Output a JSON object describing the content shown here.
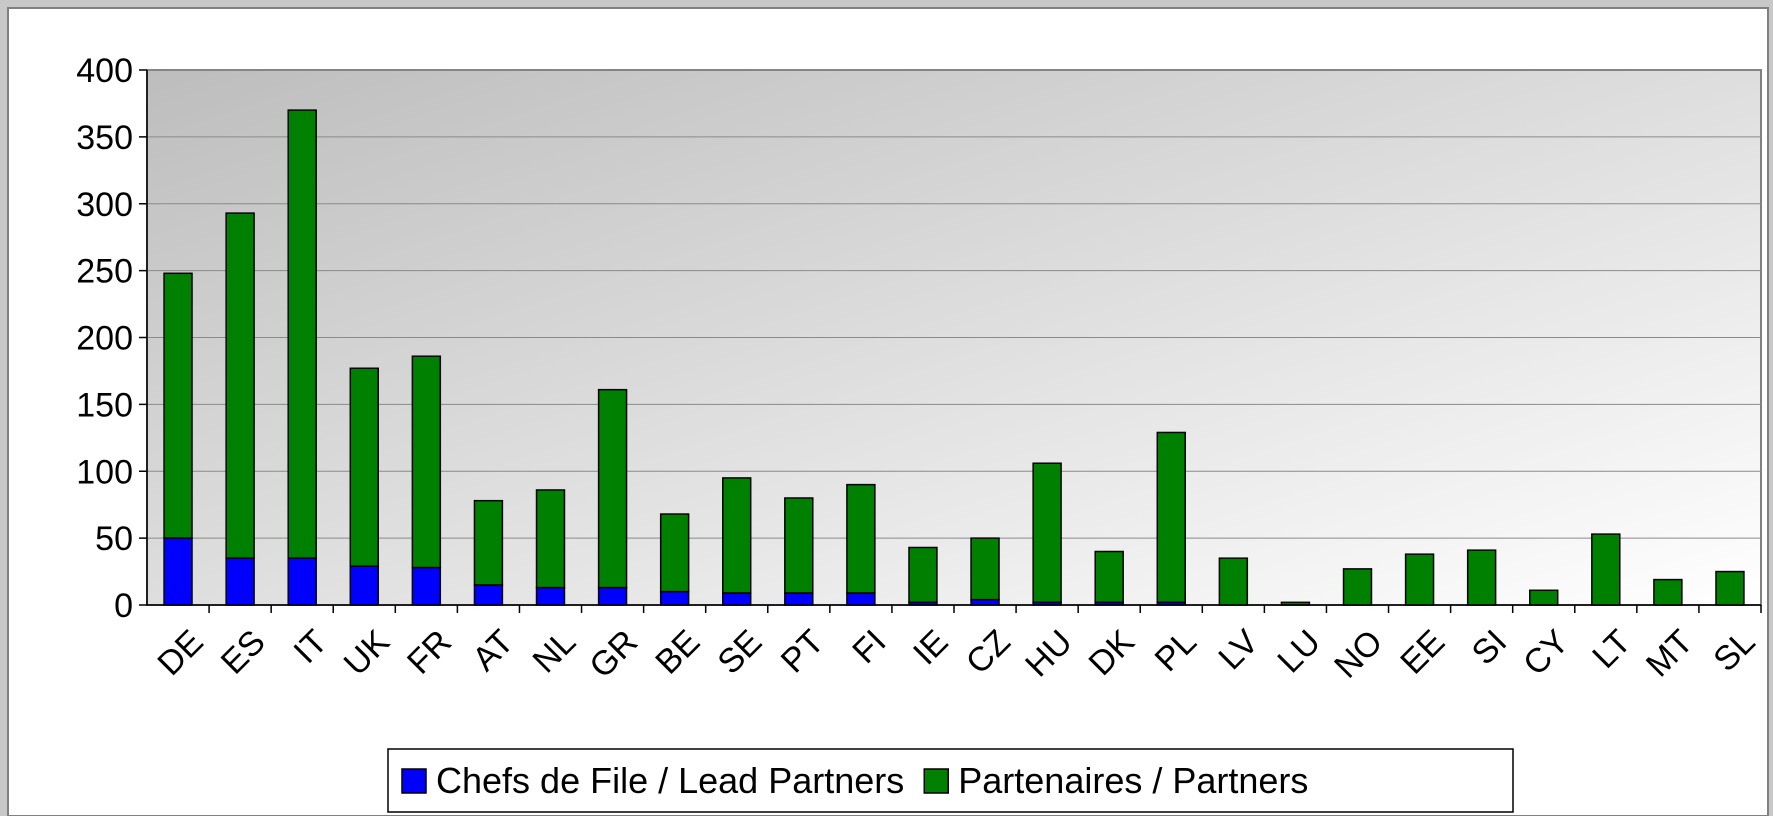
{
  "chart_data": {
    "type": "stacked_bar",
    "categories": [
      "DE",
      "ES",
      "IT",
      "UK",
      "FR",
      "AT",
      "NL",
      "GR",
      "BE",
      "SE",
      "PT",
      "FI",
      "IE",
      "CZ",
      "HU",
      "DK",
      "PL",
      "LV",
      "LU",
      "NO",
      "EE",
      "SI",
      "CY",
      "LT",
      "MT",
      "SL"
    ],
    "series": [
      {
        "name": "Chefs de File / Lead Partners",
        "color": "#0000ff",
        "values": [
          50,
          35,
          35,
          29,
          28,
          15,
          13,
          13,
          10,
          9,
          9,
          9,
          2,
          4,
          2,
          2,
          2,
          0,
          0,
          0,
          0,
          0,
          0,
          0,
          0,
          0
        ]
      },
      {
        "name": "Partenaires / Partners",
        "color": "#008000",
        "values": [
          198,
          258,
          335,
          148,
          158,
          63,
          73,
          148,
          58,
          86,
          71,
          81,
          41,
          46,
          104,
          38,
          127,
          35,
          2,
          27,
          38,
          41,
          11,
          53,
          19,
          25
        ]
      }
    ],
    "ylim": [
      0,
      400
    ],
    "yticks": [
      0,
      50,
      100,
      150,
      200,
      250,
      300,
      350,
      400
    ],
    "grid": true,
    "legend": "bottom"
  }
}
